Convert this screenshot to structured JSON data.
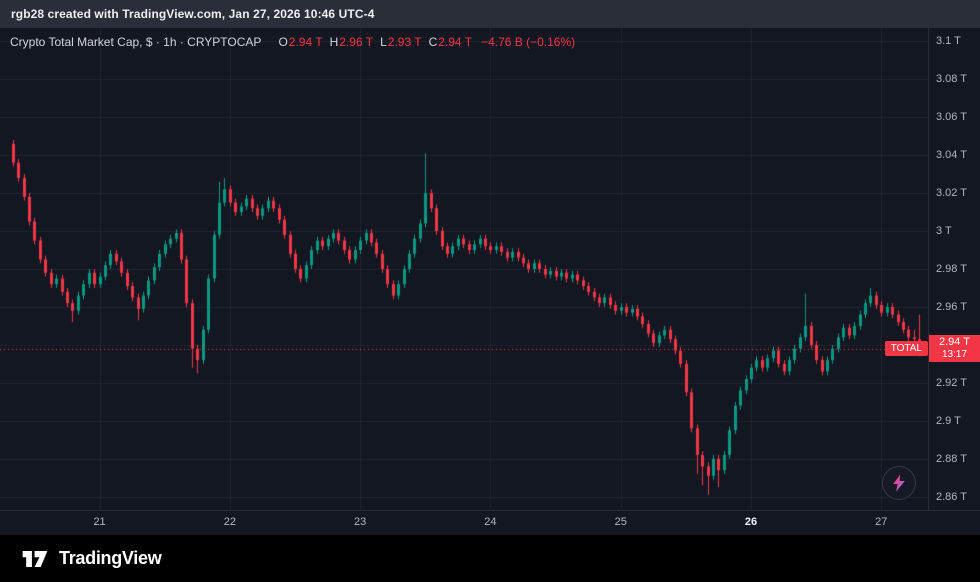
{
  "attribution_bar": {
    "text": "rgb28 created with TradingView.com, Jan 27, 2026 10:46 UTC-4"
  },
  "legend": {
    "symbol_title": "Crypto Total Market Cap, $ · 1h · CRYPTOCAP",
    "ohlc": {
      "o_label": "O",
      "o": "2.94 T",
      "h_label": "H",
      "h": "2.96 T",
      "l_label": "L",
      "l": "2.93 T",
      "c_label": "C",
      "c": "2.94 T",
      "change": "−4.76 B (−0.16%)"
    }
  },
  "price_scale": {
    "ticks": [
      {
        "value": 3.1,
        "label": "3.1 T"
      },
      {
        "value": 3.08,
        "label": "3.08 T"
      },
      {
        "value": 3.06,
        "label": "3.06 T"
      },
      {
        "value": 3.04,
        "label": "3.04 T"
      },
      {
        "value": 3.02,
        "label": "3.02 T"
      },
      {
        "value": 3.0,
        "label": "3 T"
      },
      {
        "value": 2.98,
        "label": "2.98 T"
      },
      {
        "value": 2.96,
        "label": "2.96 T"
      },
      {
        "value": 2.94,
        "label": "2.94 T"
      },
      {
        "value": 2.92,
        "label": "2.92 T"
      },
      {
        "value": 2.9,
        "label": "2.9 T"
      },
      {
        "value": 2.88,
        "label": "2.88 T"
      },
      {
        "value": 2.86,
        "label": "2.86 T"
      }
    ],
    "last_price": {
      "value": 2.938,
      "label": "2.94 T",
      "countdown": "13:17",
      "marker_label": "TOTAL"
    }
  },
  "time_scale": {
    "ticks": [
      {
        "index": 16,
        "label": "21",
        "emphasis": false
      },
      {
        "index": 40,
        "label": "22",
        "emphasis": false
      },
      {
        "index": 64,
        "label": "23",
        "emphasis": false
      },
      {
        "index": 88,
        "label": "24",
        "emphasis": false
      },
      {
        "index": 112,
        "label": "25",
        "emphasis": false
      },
      {
        "index": 136,
        "label": "26",
        "emphasis": true
      },
      {
        "index": 160,
        "label": "27",
        "emphasis": false
      }
    ]
  },
  "footer": {
    "brand": "TradingView"
  },
  "icons": {
    "lightning_icon": "⚡",
    "tradingview_logo_icon": "TV monogram"
  },
  "colors": {
    "up": "#089981",
    "down": "#f23645",
    "bg": "#131722",
    "grid": "rgba(240,243,250,0.06)",
    "axis_text": "#b2b5be",
    "text": "#d1d4dc",
    "accent_red": "#f23645",
    "topbar_bg": "#2a2e39",
    "footer_bg": "#000000"
  },
  "chart_data": {
    "type": "candlestick",
    "title": "Crypto Total Market Cap",
    "symbol": "CRYPTOCAP:TOTAL",
    "interval": "1h",
    "unit": "trillion USD (T)",
    "x_description": "hourly candles, Jan 20 ~08:00 through Jan 27 ~08:00 (UTC-4)",
    "x_day_tick_indices": {
      "21": 16,
      "22": 40,
      "23": 64,
      "24": 88,
      "25": 112,
      "26": 136,
      "27": 160
    },
    "y_range": [
      2.853,
      3.107
    ],
    "y_ticks": [
      2.86,
      2.88,
      2.9,
      2.92,
      2.94,
      2.96,
      2.98,
      3.0,
      3.02,
      3.04,
      3.06,
      3.08,
      3.1
    ],
    "last_close": 2.938,
    "change_abs_B": -4.76,
    "change_pct": -0.16,
    "candles": [
      [
        3.046,
        3.048,
        3.034,
        3.036
      ],
      [
        3.036,
        3.038,
        3.026,
        3.028
      ],
      [
        3.028,
        3.03,
        3.016,
        3.018
      ],
      [
        3.018,
        3.02,
        3.003,
        3.005
      ],
      [
        3.005,
        3.007,
        2.993,
        2.995
      ],
      [
        2.995,
        2.997,
        2.983,
        2.985
      ],
      [
        2.985,
        2.987,
        2.976,
        2.978
      ],
      [
        2.978,
        2.98,
        2.97,
        2.972
      ],
      [
        2.972,
        2.977,
        2.97,
        2.975
      ],
      [
        2.975,
        2.977,
        2.966,
        2.968
      ],
      [
        2.968,
        2.97,
        2.96,
        2.962
      ],
      [
        2.962,
        2.964,
        2.952,
        2.958
      ],
      [
        2.958,
        2.968,
        2.956,
        2.966
      ],
      [
        2.966,
        2.974,
        2.964,
        2.972
      ],
      [
        2.972,
        2.98,
        2.97,
        2.978
      ],
      [
        2.978,
        2.98,
        2.97,
        2.972
      ],
      [
        2.972,
        2.978,
        2.97,
        2.976
      ],
      [
        2.976,
        2.984,
        2.974,
        2.982
      ],
      [
        2.982,
        2.99,
        2.98,
        2.988
      ],
      [
        2.988,
        2.99,
        2.982,
        2.984
      ],
      [
        2.984,
        2.986,
        2.976,
        2.978
      ],
      [
        2.978,
        2.98,
        2.969,
        2.971
      ],
      [
        2.971,
        2.973,
        2.963,
        2.965
      ],
      [
        2.965,
        2.967,
        2.953,
        2.959
      ],
      [
        2.959,
        2.968,
        2.957,
        2.966
      ],
      [
        2.966,
        2.976,
        2.964,
        2.974
      ],
      [
        2.974,
        2.983,
        2.972,
        2.981
      ],
      [
        2.981,
        2.99,
        2.979,
        2.988
      ],
      [
        2.988,
        2.995,
        2.986,
        2.993
      ],
      [
        2.993,
        2.998,
        2.991,
        2.996
      ],
      [
        2.996,
        3.001,
        2.994,
        2.999
      ],
      [
        2.999,
        3.001,
        2.983,
        2.985
      ],
      [
        2.985,
        2.987,
        2.96,
        2.962
      ],
      [
        2.962,
        2.964,
        2.928,
        2.938
      ],
      [
        2.938,
        2.94,
        2.925,
        2.932
      ],
      [
        2.932,
        2.95,
        2.93,
        2.948
      ],
      [
        2.948,
        2.977,
        2.946,
        2.975
      ],
      [
        2.975,
        3.0,
        2.973,
        2.998
      ],
      [
        2.998,
        3.026,
        2.996,
        3.015
      ],
      [
        3.015,
        3.028,
        3.013,
        3.022
      ],
      [
        3.022,
        3.024,
        3.013,
        3.015
      ],
      [
        3.015,
        3.017,
        3.008,
        3.01
      ],
      [
        3.01,
        3.015,
        3.008,
        3.013
      ],
      [
        3.013,
        3.019,
        3.011,
        3.017
      ],
      [
        3.017,
        3.019,
        3.01,
        3.012
      ],
      [
        3.012,
        3.014,
        3.006,
        3.008
      ],
      [
        3.008,
        3.014,
        3.006,
        3.012
      ],
      [
        3.012,
        3.018,
        3.01,
        3.016
      ],
      [
        3.016,
        3.018,
        3.01,
        3.012
      ],
      [
        3.012,
        3.014,
        3.004,
        3.006
      ],
      [
        3.006,
        3.008,
        2.996,
        2.998
      ],
      [
        2.998,
        3.0,
        2.986,
        2.988
      ],
      [
        2.988,
        2.99,
        2.978,
        2.98
      ],
      [
        2.98,
        2.982,
        2.973,
        2.975
      ],
      [
        2.975,
        2.984,
        2.973,
        2.982
      ],
      [
        2.982,
        2.992,
        2.98,
        2.99
      ],
      [
        2.99,
        2.997,
        2.988,
        2.995
      ],
      [
        2.995,
        2.997,
        2.99,
        2.992
      ],
      [
        2.992,
        2.998,
        2.99,
        2.996
      ],
      [
        2.996,
        3.001,
        2.994,
        2.999
      ],
      [
        2.999,
        3.001,
        2.993,
        2.995
      ],
      [
        2.995,
        2.997,
        2.988,
        2.99
      ],
      [
        2.99,
        2.992,
        2.983,
        2.985
      ],
      [
        2.985,
        2.992,
        2.983,
        2.99
      ],
      [
        2.99,
        2.997,
        2.988,
        2.995
      ],
      [
        2.995,
        3.001,
        2.993,
        2.999
      ],
      [
        2.999,
        3.001,
        2.992,
        2.994
      ],
      [
        2.994,
        2.996,
        2.986,
        2.988
      ],
      [
        2.988,
        2.99,
        2.978,
        2.98
      ],
      [
        2.98,
        2.982,
        2.97,
        2.972
      ],
      [
        2.972,
        2.974,
        2.964,
        2.966
      ],
      [
        2.966,
        2.974,
        2.964,
        2.972
      ],
      [
        2.972,
        2.982,
        2.97,
        2.98
      ],
      [
        2.98,
        2.99,
        2.978,
        2.988
      ],
      [
        2.988,
        2.998,
        2.986,
        2.996
      ],
      [
        2.996,
        3.006,
        2.994,
        3.004
      ],
      [
        3.004,
        3.041,
        3.002,
        3.02
      ],
      [
        3.02,
        3.022,
        3.01,
        3.012
      ],
      [
        3.012,
        3.014,
        2.998,
        3.0
      ],
      [
        3.0,
        3.002,
        2.99,
        2.992
      ],
      [
        2.992,
        2.994,
        2.986,
        2.988
      ],
      [
        2.988,
        2.994,
        2.986,
        2.992
      ],
      [
        2.992,
        2.998,
        2.99,
        2.996
      ],
      [
        2.996,
        2.998,
        2.991,
        2.993
      ],
      [
        2.993,
        2.995,
        2.988,
        2.99
      ],
      [
        2.99,
        2.995,
        2.988,
        2.993
      ],
      [
        2.993,
        2.998,
        2.991,
        2.996
      ],
      [
        2.996,
        2.998,
        2.99,
        2.992
      ],
      [
        2.992,
        2.994,
        2.988,
        2.99
      ],
      [
        2.99,
        2.994,
        2.988,
        2.992
      ],
      [
        2.992,
        2.994,
        2.987,
        2.989
      ],
      [
        2.989,
        2.991,
        2.984,
        2.986
      ],
      [
        2.986,
        2.991,
        2.984,
        2.989
      ],
      [
        2.989,
        2.991,
        2.984,
        2.986
      ],
      [
        2.986,
        2.988,
        2.981,
        2.983
      ],
      [
        2.983,
        2.985,
        2.978,
        2.98
      ],
      [
        2.98,
        2.985,
        2.978,
        2.983
      ],
      [
        2.983,
        2.985,
        2.978,
        2.98
      ],
      [
        2.98,
        2.982,
        2.975,
        2.977
      ],
      [
        2.977,
        2.981,
        2.975,
        2.979
      ],
      [
        2.979,
        2.981,
        2.974,
        2.976
      ],
      [
        2.976,
        2.98,
        2.974,
        2.978
      ],
      [
        2.978,
        2.98,
        2.973,
        2.975
      ],
      [
        2.975,
        2.979,
        2.973,
        2.977
      ],
      [
        2.977,
        2.979,
        2.972,
        2.974
      ],
      [
        2.974,
        2.976,
        2.969,
        2.971
      ],
      [
        2.971,
        2.973,
        2.966,
        2.968
      ],
      [
        2.968,
        2.97,
        2.963,
        2.965
      ],
      [
        2.965,
        2.967,
        2.96,
        2.962
      ],
      [
        2.962,
        2.967,
        2.96,
        2.965
      ],
      [
        2.965,
        2.967,
        2.959,
        2.961
      ],
      [
        2.961,
        2.963,
        2.956,
        2.958
      ],
      [
        2.958,
        2.962,
        2.956,
        2.96
      ],
      [
        2.96,
        2.962,
        2.955,
        2.957
      ],
      [
        2.957,
        2.961,
        2.955,
        2.959
      ],
      [
        2.959,
        2.961,
        2.953,
        2.955
      ],
      [
        2.955,
        2.957,
        2.949,
        2.951
      ],
      [
        2.951,
        2.953,
        2.944,
        2.946
      ],
      [
        2.946,
        2.948,
        2.939,
        2.941
      ],
      [
        2.941,
        2.947,
        2.939,
        2.945
      ],
      [
        2.945,
        2.95,
        2.943,
        2.948
      ],
      [
        2.948,
        2.95,
        2.941,
        2.943
      ],
      [
        2.943,
        2.945,
        2.935,
        2.937
      ],
      [
        2.937,
        2.939,
        2.928,
        2.93
      ],
      [
        2.93,
        2.932,
        2.913,
        2.915
      ],
      [
        2.915,
        2.917,
        2.894,
        2.896
      ],
      [
        2.896,
        2.898,
        2.872,
        2.882
      ],
      [
        2.882,
        2.884,
        2.866,
        2.876
      ],
      [
        2.876,
        2.878,
        2.861,
        2.871
      ],
      [
        2.871,
        2.882,
        2.869,
        2.88
      ],
      [
        2.88,
        2.882,
        2.865,
        2.874
      ],
      [
        2.874,
        2.884,
        2.872,
        2.882
      ],
      [
        2.882,
        2.897,
        2.88,
        2.895
      ],
      [
        2.895,
        2.91,
        2.893,
        2.908
      ],
      [
        2.908,
        2.918,
        2.906,
        2.916
      ],
      [
        2.916,
        2.924,
        2.914,
        2.922
      ],
      [
        2.922,
        2.93,
        2.92,
        2.928
      ],
      [
        2.928,
        2.934,
        2.926,
        2.932
      ],
      [
        2.932,
        2.934,
        2.926,
        2.928
      ],
      [
        2.928,
        2.935,
        2.926,
        2.933
      ],
      [
        2.933,
        2.939,
        2.931,
        2.937
      ],
      [
        2.937,
        2.939,
        2.928,
        2.93
      ],
      [
        2.93,
        2.932,
        2.924,
        2.926
      ],
      [
        2.926,
        2.934,
        2.924,
        2.932
      ],
      [
        2.932,
        2.94,
        2.93,
        2.938
      ],
      [
        2.938,
        2.946,
        2.936,
        2.944
      ],
      [
        2.944,
        2.967,
        2.942,
        2.95
      ],
      [
        2.95,
        2.952,
        2.938,
        2.94
      ],
      [
        2.94,
        2.942,
        2.93,
        2.932
      ],
      [
        2.932,
        2.934,
        2.924,
        2.926
      ],
      [
        2.926,
        2.934,
        2.924,
        2.932
      ],
      [
        2.932,
        2.94,
        2.93,
        2.938
      ],
      [
        2.938,
        2.946,
        2.936,
        2.944
      ],
      [
        2.944,
        2.951,
        2.942,
        2.949
      ],
      [
        2.949,
        2.951,
        2.943,
        2.945
      ],
      [
        2.945,
        2.952,
        2.943,
        2.95
      ],
      [
        2.95,
        2.958,
        2.948,
        2.956
      ],
      [
        2.956,
        2.964,
        2.954,
        2.962
      ],
      [
        2.962,
        2.97,
        2.96,
        2.966
      ],
      [
        2.966,
        2.968,
        2.959,
        2.961
      ],
      [
        2.961,
        2.963,
        2.955,
        2.957
      ],
      [
        2.957,
        2.962,
        2.955,
        2.96
      ],
      [
        2.96,
        2.962,
        2.954,
        2.956
      ],
      [
        2.956,
        2.958,
        2.95,
        2.952
      ],
      [
        2.952,
        2.954,
        2.946,
        2.948
      ],
      [
        2.948,
        2.95,
        2.94,
        2.944
      ],
      [
        2.944,
        2.948,
        2.938,
        2.943
      ],
      [
        2.943,
        2.956,
        2.934,
        2.938
      ]
    ]
  }
}
